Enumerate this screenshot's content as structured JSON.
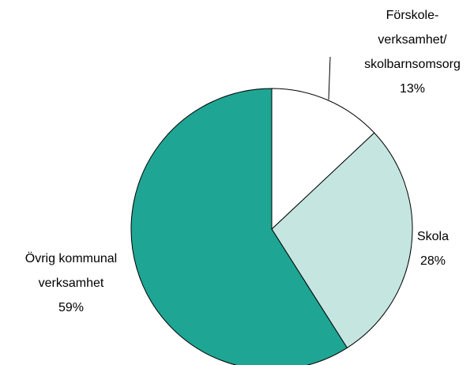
{
  "chart_data": {
    "type": "pie",
    "categories": [
      [
        "Förskole-",
        "verksamhet/",
        "skolbarnsomsorg"
      ],
      [
        "Skola"
      ],
      [
        "Övrig kommunal",
        "verksamhet"
      ]
    ],
    "values": [
      13,
      28,
      59
    ],
    "value_labels": [
      "13%",
      "28%",
      "59%"
    ],
    "colors": [
      "#ffffff",
      "#c5e6e0",
      "#1fa593"
    ]
  }
}
